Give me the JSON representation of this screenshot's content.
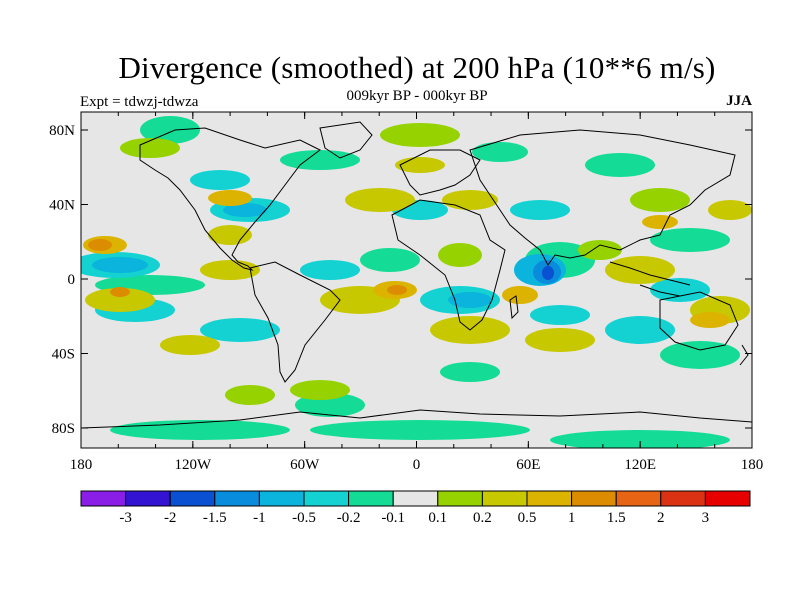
{
  "title": "Divergence (smoothed) at 200 hPa (10**6 m/s)",
  "subtitle": "009kyr BP - 000kyr BP",
  "experiment": "Expt = tdwzj-tdwza",
  "season": "JJA",
  "map": {
    "lat_ticks": [
      "80N",
      "40N",
      "0",
      "40S",
      "80S"
    ],
    "lon_ticks": [
      "180",
      "120W",
      "60W",
      "0",
      "60E",
      "120E",
      "180"
    ],
    "background_color": "#e6e6e6"
  },
  "colorbar": {
    "levels": [
      "-3",
      "-2",
      "-1.5",
      "-1",
      "-0.5",
      "-0.2",
      "-0.1",
      "0.1",
      "0.2",
      "0.5",
      "1",
      "1.5",
      "2",
      "3"
    ],
    "colors": [
      "#8a1ee6",
      "#3214d2",
      "#0a50d2",
      "#0a8cdc",
      "#0ab4dc",
      "#14d2d2",
      "#14dc96",
      "#e6e6e6",
      "#96d200",
      "#c8c800",
      "#dcb400",
      "#dc8c00",
      "#e66414",
      "#dc3214",
      "#e60000"
    ]
  }
}
